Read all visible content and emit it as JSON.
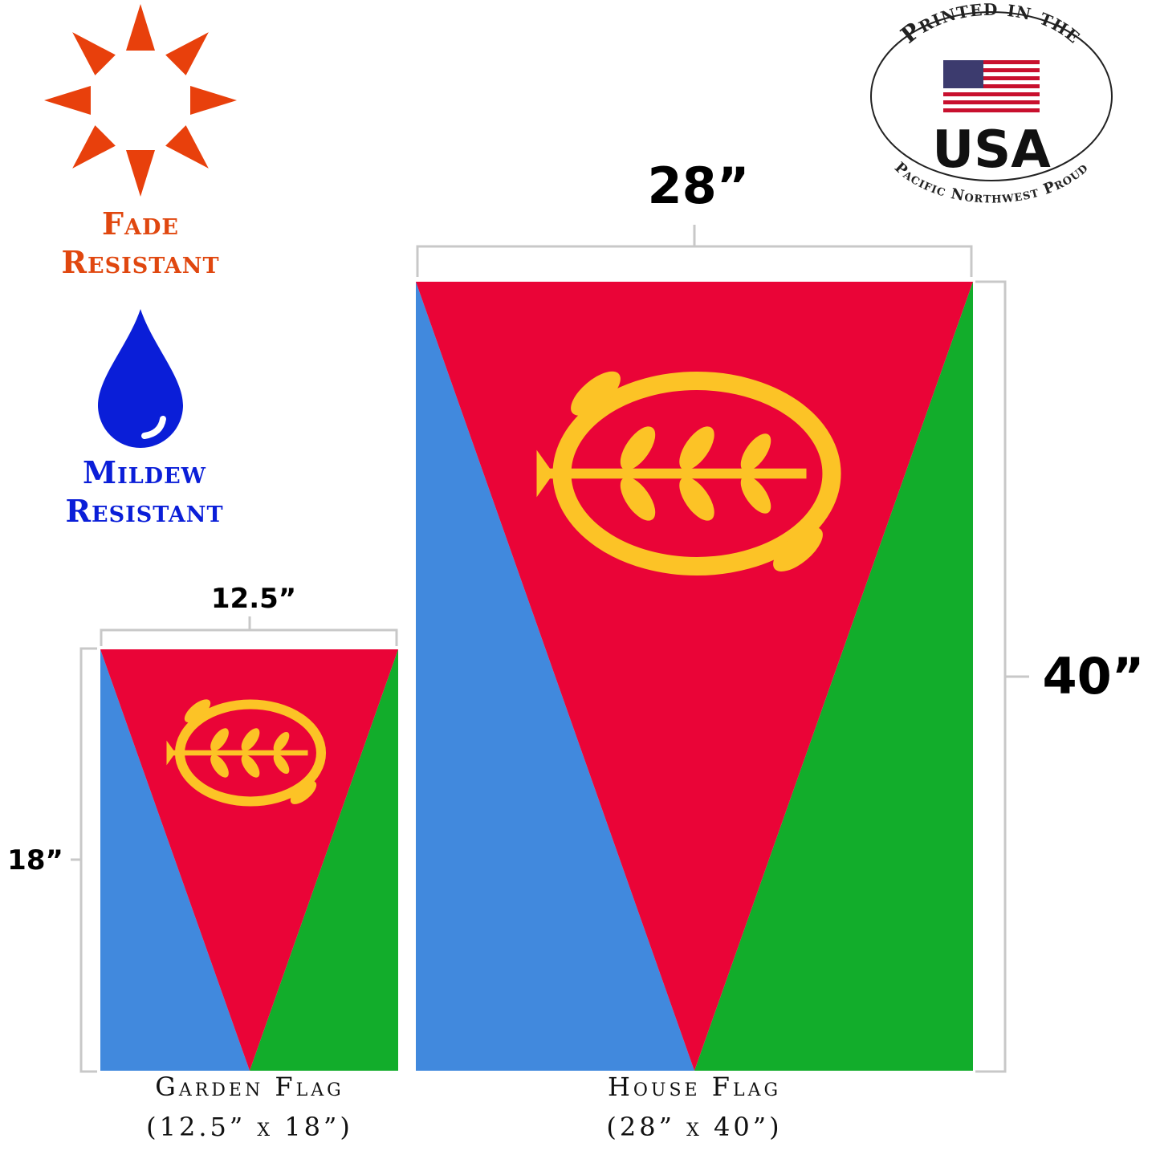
{
  "badges": {
    "fade": [
      "Fade",
      "Resistant"
    ],
    "mildew": [
      "Mildew",
      "Resistant"
    ]
  },
  "logo": {
    "top": "Printed in the",
    "main": "USA",
    "bottom": "Pacific Northwest Proud"
  },
  "house_flag": {
    "width": "28”",
    "height": "40”",
    "name": "House Flag",
    "size": "(28” x 40”)"
  },
  "garden_flag": {
    "width": "12.5”",
    "height": "18”",
    "name": "Garden Flag",
    "size": "(12.5” x 18”)"
  }
}
